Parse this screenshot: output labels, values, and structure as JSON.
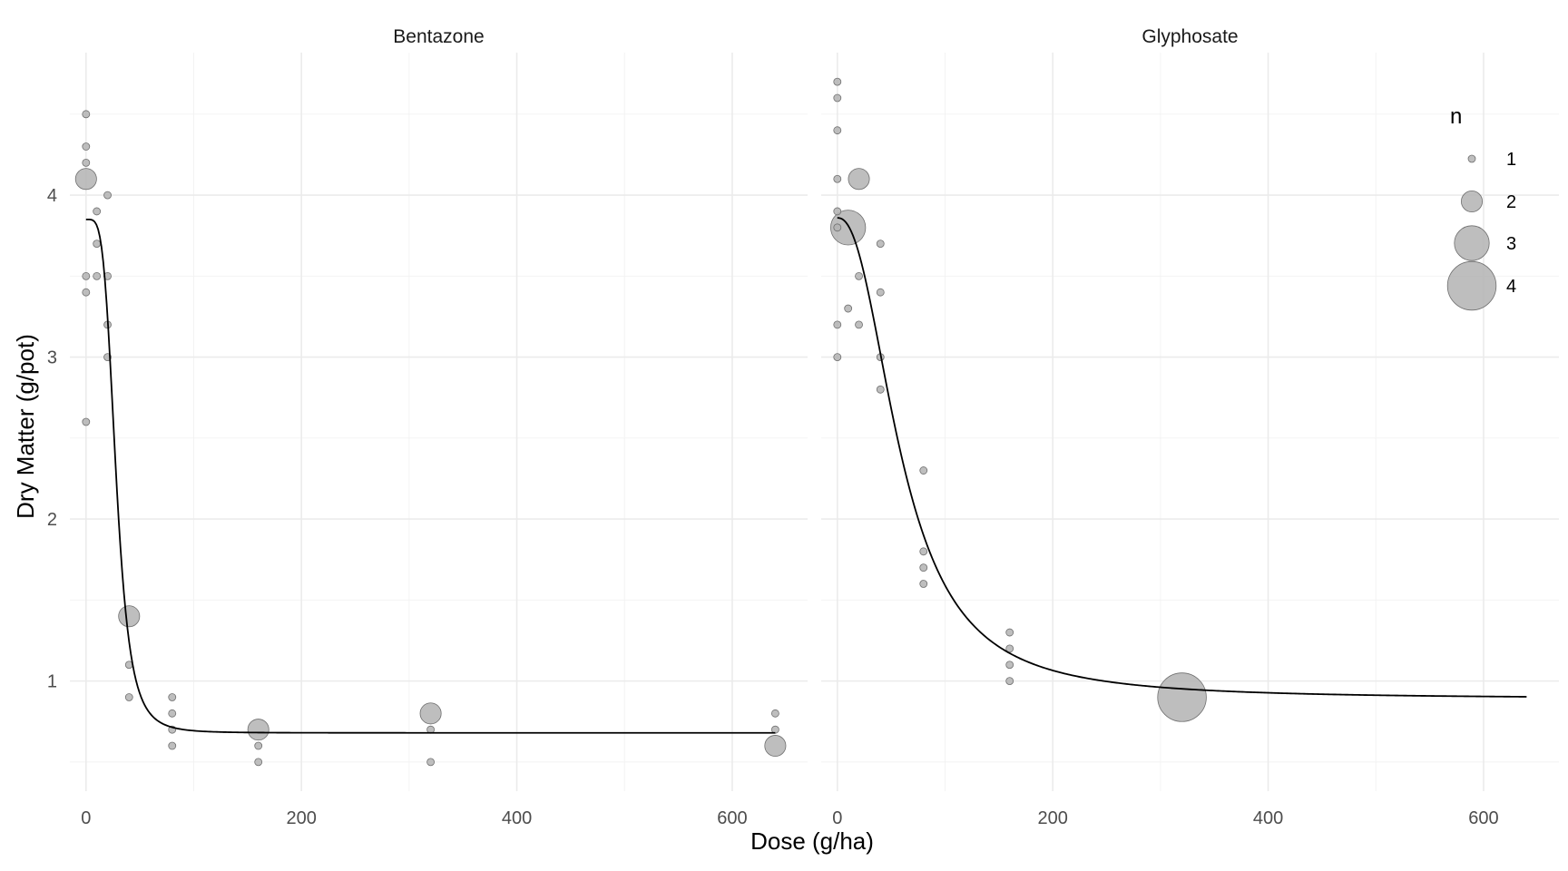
{
  "chart_data": {
    "type": "scatter",
    "xlabel": "Dose (g/ha)",
    "ylabel": "Dry Matter (g/pot)",
    "xlim": [
      -15,
      670
    ],
    "ylim": [
      0.32,
      4.88
    ],
    "x_ticks": [
      0,
      200,
      400,
      600
    ],
    "y_ticks": [
      1,
      2,
      3,
      4
    ],
    "x_tick_labels": [
      "0",
      "200",
      "400",
      "600"
    ],
    "y_tick_labels": [
      "1",
      "2",
      "3",
      "4"
    ],
    "grid": true,
    "point_color": "#b3b3b3",
    "line_color": "#000000",
    "legend": {
      "title": "n",
      "placement": "right",
      "entries": [
        {
          "label": "1",
          "n": 1
        },
        {
          "label": "2",
          "n": 2
        },
        {
          "label": "3",
          "n": 3
        },
        {
          "label": "4",
          "n": 4
        }
      ]
    },
    "panels": [
      {
        "name": "Bentazone",
        "points": [
          {
            "x": 0,
            "y": 4.5,
            "n": 1
          },
          {
            "x": 0,
            "y": 4.3,
            "n": 1
          },
          {
            "x": 0,
            "y": 4.2,
            "n": 1
          },
          {
            "x": 0,
            "y": 4.1,
            "n": 2
          },
          {
            "x": 0,
            "y": 3.5,
            "n": 1
          },
          {
            "x": 0,
            "y": 3.4,
            "n": 1
          },
          {
            "x": 0,
            "y": 2.6,
            "n": 1
          },
          {
            "x": 10,
            "y": 3.9,
            "n": 1
          },
          {
            "x": 10,
            "y": 3.7,
            "n": 1
          },
          {
            "x": 10,
            "y": 3.5,
            "n": 1
          },
          {
            "x": 20,
            "y": 4.0,
            "n": 1
          },
          {
            "x": 20,
            "y": 3.5,
            "n": 1
          },
          {
            "x": 20,
            "y": 3.2,
            "n": 1
          },
          {
            "x": 20,
            "y": 3.0,
            "n": 1
          },
          {
            "x": 40,
            "y": 1.4,
            "n": 2
          },
          {
            "x": 40,
            "y": 1.1,
            "n": 1
          },
          {
            "x": 40,
            "y": 0.9,
            "n": 1
          },
          {
            "x": 80,
            "y": 0.9,
            "n": 1
          },
          {
            "x": 80,
            "y": 0.8,
            "n": 1
          },
          {
            "x": 80,
            "y": 0.7,
            "n": 1
          },
          {
            "x": 80,
            "y": 0.6,
            "n": 1
          },
          {
            "x": 160,
            "y": 0.7,
            "n": 2
          },
          {
            "x": 160,
            "y": 0.6,
            "n": 1
          },
          {
            "x": 160,
            "y": 0.5,
            "n": 1
          },
          {
            "x": 320,
            "y": 0.8,
            "n": 2
          },
          {
            "x": 320,
            "y": 0.7,
            "n": 1
          },
          {
            "x": 320,
            "y": 0.5,
            "n": 1
          },
          {
            "x": 640,
            "y": 0.8,
            "n": 1
          },
          {
            "x": 640,
            "y": 0.7,
            "n": 1
          },
          {
            "x": 640,
            "y": 0.6,
            "n": 2
          }
        ],
        "fit": {
          "model": "log-logistic",
          "b": 4.3,
          "c": 0.68,
          "d": 3.85,
          "e": 28
        }
      },
      {
        "name": "Glyphosate",
        "points": [
          {
            "x": 0,
            "y": 4.7,
            "n": 1
          },
          {
            "x": 0,
            "y": 4.6,
            "n": 1
          },
          {
            "x": 0,
            "y": 4.4,
            "n": 1
          },
          {
            "x": 0,
            "y": 4.1,
            "n": 1
          },
          {
            "x": 0,
            "y": 3.9,
            "n": 1
          },
          {
            "x": 0,
            "y": 3.8,
            "n": 1
          },
          {
            "x": 0,
            "y": 3.2,
            "n": 1
          },
          {
            "x": 0,
            "y": 3.0,
            "n": 1
          },
          {
            "x": 10,
            "y": 3.8,
            "n": 3
          },
          {
            "x": 10,
            "y": 3.3,
            "n": 1
          },
          {
            "x": 20,
            "y": 4.1,
            "n": 2
          },
          {
            "x": 20,
            "y": 3.5,
            "n": 1
          },
          {
            "x": 20,
            "y": 3.2,
            "n": 1
          },
          {
            "x": 40,
            "y": 3.7,
            "n": 1
          },
          {
            "x": 40,
            "y": 3.4,
            "n": 1
          },
          {
            "x": 40,
            "y": 3.0,
            "n": 1
          },
          {
            "x": 40,
            "y": 2.8,
            "n": 1
          },
          {
            "x": 80,
            "y": 2.3,
            "n": 1
          },
          {
            "x": 80,
            "y": 1.8,
            "n": 1
          },
          {
            "x": 80,
            "y": 1.7,
            "n": 1
          },
          {
            "x": 80,
            "y": 1.6,
            "n": 1
          },
          {
            "x": 160,
            "y": 1.3,
            "n": 1
          },
          {
            "x": 160,
            "y": 1.2,
            "n": 1
          },
          {
            "x": 160,
            "y": 1.1,
            "n": 1
          },
          {
            "x": 160,
            "y": 1.0,
            "n": 1
          },
          {
            "x": 320,
            "y": 0.9,
            "n": 4
          }
        ],
        "fit": {
          "model": "log-logistic",
          "b": 2.3,
          "c": 0.89,
          "d": 3.86,
          "e": 60
        }
      }
    ]
  }
}
